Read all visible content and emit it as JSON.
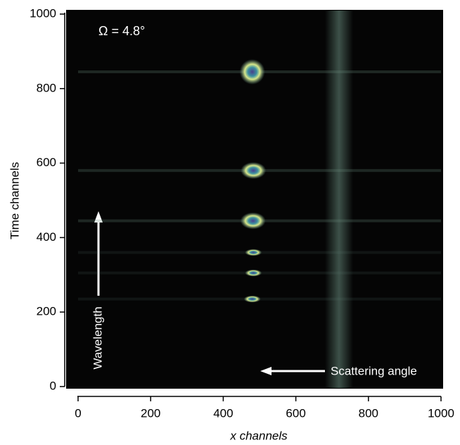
{
  "chart_data": {
    "type": "scatter",
    "annotations": [
      "Ω = 4.8°",
      "Wavelength",
      "Scattering angle"
    ],
    "xlabel": "x channels",
    "ylabel": "Time channels",
    "xlim": [
      0,
      1000
    ],
    "ylim": [
      0,
      1000
    ],
    "xticks": [
      0,
      200,
      400,
      600,
      800,
      1000
    ],
    "yticks": [
      0,
      200,
      400,
      600,
      800,
      1000
    ],
    "x": [
      480,
      483,
      482,
      483,
      483,
      480
    ],
    "values": [
      845,
      580,
      445,
      360,
      305,
      235
    ],
    "color": "#d8e88a"
  }
}
